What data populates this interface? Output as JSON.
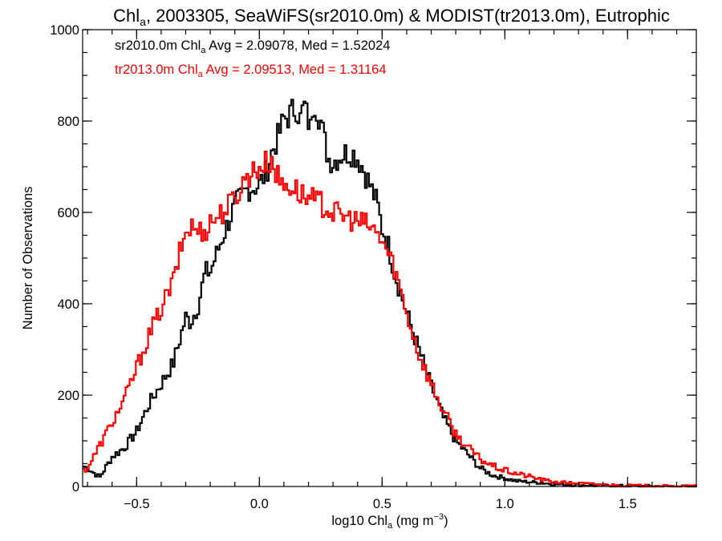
{
  "chart_data": {
    "type": "line",
    "step": true,
    "title": {
      "prefix": "Chl",
      "sub": "a",
      "rest": ", 2003305, SeaWiFS(sr2010.0m) & MODIST(tr2013.0m), Eutrophic"
    },
    "xlabel": {
      "prefix": "log10 Chl",
      "sub": "a",
      "mid": " (mg m",
      "sup": "−3",
      "suffix": ")"
    },
    "ylabel": "Number of Observations",
    "xlim": [
      -0.72,
      1.78
    ],
    "ylim": [
      0,
      1000
    ],
    "xticks": [
      {
        "value": -0.5,
        "label": "−0.5"
      },
      {
        "value": 0.0,
        "label": "0.0"
      },
      {
        "value": 0.5,
        "label": "0.5"
      },
      {
        "value": 1.0,
        "label": "1.0"
      },
      {
        "value": 1.5,
        "label": "1.5"
      }
    ],
    "yticks": [
      {
        "value": 0,
        "label": "0"
      },
      {
        "value": 200,
        "label": "200"
      },
      {
        "value": 400,
        "label": "400"
      },
      {
        "value": 600,
        "label": "600"
      },
      {
        "value": 800,
        "label": "800"
      },
      {
        "value": 1000,
        "label": "1000"
      }
    ],
    "xminor": 0.1,
    "yminor": 50,
    "grid": false,
    "annotations": [
      {
        "color": "#000000",
        "prefix": "sr2010.0m Chl",
        "sub": "a",
        "rest": " Avg = 2.09078, Med = 1.52024"
      },
      {
        "color": "#ff0000",
        "prefix": "tr2013.0m Chl",
        "sub": "a",
        "rest": " Avg = 2.09513, Med = 1.31164"
      }
    ],
    "series": [
      {
        "color": "#000000",
        "x": [
          -0.72,
          -0.7,
          -0.65,
          -0.6,
          -0.55,
          -0.5,
          -0.45,
          -0.4,
          -0.35,
          -0.3,
          -0.28,
          -0.25,
          -0.22,
          -0.2,
          -0.15,
          -0.1,
          -0.05,
          0.0,
          0.03,
          0.05,
          0.08,
          0.1,
          0.12,
          0.13,
          0.15,
          0.17,
          0.18,
          0.2,
          0.21,
          0.22,
          0.25,
          0.28,
          0.3,
          0.32,
          0.35,
          0.38,
          0.4,
          0.42,
          0.45,
          0.48,
          0.5,
          0.52,
          0.55,
          0.6,
          0.65,
          0.7,
          0.75,
          0.8,
          0.85,
          0.9,
          0.95,
          1.0,
          1.05,
          1.1,
          1.15,
          1.2,
          1.3,
          1.4,
          1.5,
          1.6,
          1.7,
          1.78
        ],
        "y": [
          45,
          40,
          20,
          65,
          85,
          120,
          180,
          225,
          270,
          370,
          360,
          395,
          470,
          470,
          545,
          615,
          650,
          660,
          690,
          730,
          770,
          805,
          810,
          820,
          830,
          800,
          840,
          800,
          780,
          850,
          800,
          720,
          710,
          720,
          730,
          730,
          720,
          700,
          660,
          620,
          565,
          540,
          470,
          380,
          300,
          220,
          150,
          100,
          70,
          40,
          25,
          18,
          12,
          10,
          8,
          5,
          3,
          2,
          1,
          1,
          0,
          0
        ]
      },
      {
        "color": "#ff0000",
        "x": [
          -0.72,
          -0.7,
          -0.65,
          -0.6,
          -0.55,
          -0.5,
          -0.45,
          -0.4,
          -0.35,
          -0.32,
          -0.3,
          -0.28,
          -0.25,
          -0.22,
          -0.2,
          -0.15,
          -0.1,
          -0.05,
          0.0,
          0.02,
          0.05,
          0.08,
          0.1,
          0.12,
          0.15,
          0.17,
          0.2,
          0.25,
          0.3,
          0.35,
          0.4,
          0.45,
          0.5,
          0.55,
          0.6,
          0.65,
          0.7,
          0.75,
          0.8,
          0.85,
          0.9,
          0.95,
          1.0,
          1.05,
          1.1,
          1.15,
          1.2,
          1.3,
          1.4,
          1.5,
          1.6,
          1.7,
          1.78
        ],
        "y": [
          35,
          40,
          90,
          140,
          190,
          260,
          330,
          390,
          450,
          520,
          555,
          570,
          560,
          560,
          580,
          600,
          630,
          680,
          700,
          705,
          715,
          670,
          660,
          660,
          650,
          640,
          630,
          620,
          600,
          590,
          580,
          570,
          540,
          480,
          380,
          290,
          225,
          165,
          115,
          85,
          60,
          45,
          35,
          28,
          22,
          15,
          10,
          7,
          4,
          2,
          1,
          0,
          0
        ]
      }
    ]
  }
}
